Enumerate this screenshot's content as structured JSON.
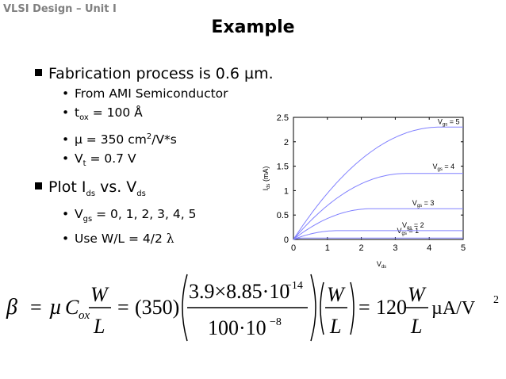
{
  "header": "VLSI Design – Unit I",
  "title": "Example",
  "bullets": {
    "b1": {
      "text": "Fabrication process is 0.6 µm."
    },
    "b1_sub": [
      {
        "text": "From AMI Semiconductor"
      },
      {
        "pre": "t",
        "sub": "ox",
        "post": " = 100 Å"
      },
      {
        "pre": "µ = 350 cm",
        "sup": "2",
        "post": "/V*s"
      },
      {
        "pre": "V",
        "sub": "t",
        "post": " = 0.7 V"
      }
    ],
    "b2": {
      "pre": "Plot I",
      "sub1": "ds",
      "mid": " vs. V",
      "sub2": "ds"
    },
    "b2_sub": [
      {
        "pre": "V",
        "sub": "gs",
        "post": " = 0, 1, 2, 3, 4, 5"
      },
      {
        "pre": "Use W/L = 4/2 ",
        "sym": "λ"
      }
    ]
  },
  "chart_data": {
    "type": "line",
    "xlabel": "Vds",
    "ylabel": "Ids (mA)",
    "xlim": [
      0,
      5
    ],
    "ylim": [
      0,
      2.5
    ],
    "xticks": [
      "0",
      "1",
      "2",
      "3",
      "4",
      "5"
    ],
    "yticks": [
      "0",
      "0.5",
      "1",
      "1.5",
      "2",
      "2.5"
    ],
    "series": [
      {
        "name": "Vgs = 1",
        "vgs": 1,
        "sat": 0.03
      },
      {
        "name": "Vgs = 2",
        "vgs": 2,
        "sat": 0.18
      },
      {
        "name": "Vgs = 3",
        "vgs": 3,
        "sat": 0.63
      },
      {
        "name": "Vgs = 4",
        "vgs": 4,
        "sat": 1.35
      },
      {
        "name": "Vgs = 5",
        "vgs": 5,
        "sat": 2.3
      }
    ],
    "line_color": "#8080ff"
  },
  "formula": {
    "beta": "β",
    "eq": "=",
    "mu": "µ",
    "C": "C",
    "C_sub": "ox",
    "W": "W",
    "L": "L",
    "n350": "(350)",
    "num": "3.9×8.85·10",
    "num_exp": "−14",
    "den": "100·10",
    "den_exp": "−8",
    "n120": "120",
    "unit": "µA/V",
    "unit_exp": "2"
  }
}
